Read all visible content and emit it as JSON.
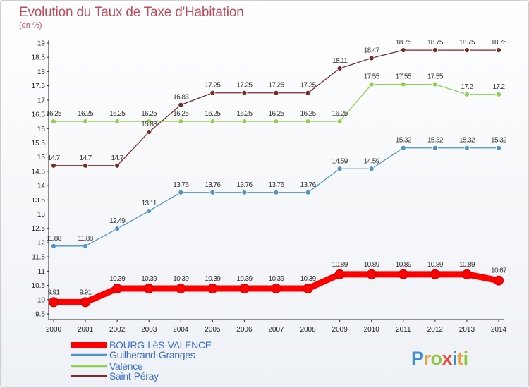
{
  "chart_data": {
    "type": "line",
    "title": "Evolution du Taux de Taxe d'Habitation",
    "subtitle": "(en %)",
    "xlabel": "",
    "ylabel": "",
    "x": [
      2000,
      2001,
      2002,
      2003,
      2004,
      2005,
      2006,
      2007,
      2008,
      2009,
      2010,
      2011,
      2012,
      2013,
      2014
    ],
    "ylim": [
      9.5,
      19
    ],
    "yticks": [
      "9.5",
      "10",
      "10.5",
      "11",
      "11.5",
      "12",
      "12.5",
      "13",
      "13.5",
      "14",
      "14.5",
      "15",
      "15.5",
      "16",
      "16.5",
      "17",
      "17.5",
      "18",
      "18.5",
      "19"
    ],
    "grid": false,
    "legend": "bottom-left",
    "series": [
      {
        "name": "BOURG-LèS-VALENCE",
        "color": "#ff0000",
        "values": [
          9.91,
          9.91,
          10.39,
          10.39,
          10.39,
          10.39,
          10.39,
          10.39,
          10.39,
          10.89,
          10.89,
          10.89,
          10.89,
          10.89,
          10.67
        ]
      },
      {
        "name": "Guilherand-Granges",
        "color": "#4f94c8",
        "values": [
          11.88,
          11.88,
          12.49,
          13.11,
          13.76,
          13.76,
          13.76,
          13.76,
          13.76,
          14.59,
          14.59,
          15.32,
          15.32,
          15.32,
          15.32
        ]
      },
      {
        "name": "Valence",
        "color": "#8fd14f",
        "values": [
          16.25,
          16.25,
          16.25,
          16.25,
          16.25,
          16.25,
          16.25,
          16.25,
          16.25,
          16.25,
          17.55,
          17.55,
          17.55,
          17.2,
          17.2
        ]
      },
      {
        "name": "Saint-Péray",
        "color": "#7a2a2a",
        "values": [
          14.7,
          14.7,
          14.7,
          15.88,
          16.83,
          17.25,
          17.25,
          17.25,
          17.25,
          18.11,
          18.47,
          18.75,
          18.75,
          18.75,
          18.75
        ]
      }
    ]
  },
  "brand": {
    "logo_text": "Proxiti"
  }
}
